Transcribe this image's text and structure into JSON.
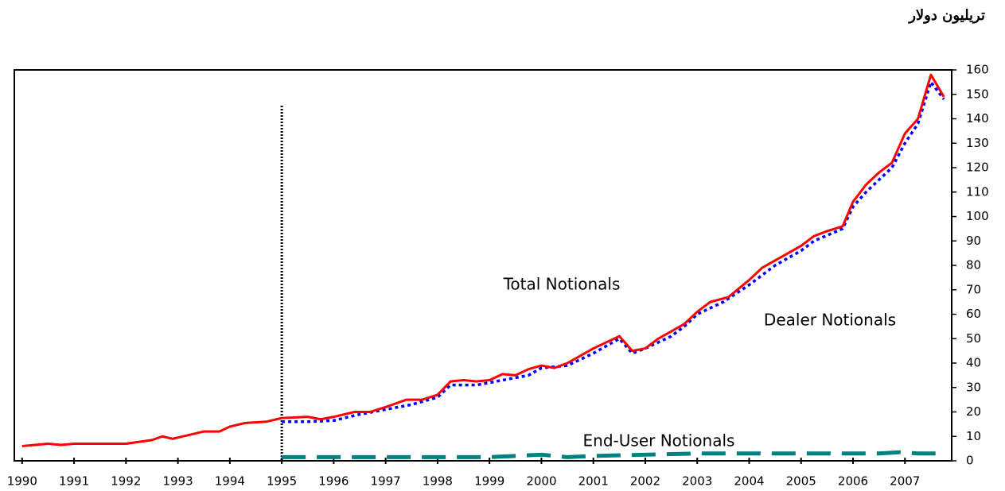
{
  "chart_data": {
    "type": "line",
    "unit_label": "تريليون دولار",
    "annotations": [
      "Total Notionals",
      "Dealer Notionals",
      "End-User Notionals"
    ],
    "xlim": [
      1989.85,
      2007.9
    ],
    "xticks": [
      1990,
      1991,
      1992,
      1993,
      1994,
      1995,
      1996,
      1997,
      1998,
      1999,
      2000,
      2001,
      2002,
      2003,
      2004,
      2005,
      2006,
      2007
    ],
    "ylim": [
      0,
      160
    ],
    "yticks": [
      0,
      10,
      20,
      30,
      40,
      50,
      60,
      70,
      80,
      90,
      100,
      110,
      120,
      130,
      140,
      150,
      160
    ],
    "series": [
      {
        "name": "Total Notionals",
        "color": "#ff0000",
        "style": "solid",
        "x": [
          1990,
          1990.5,
          1990.75,
          1991,
          1992,
          1992.5,
          1992.7,
          1992.9,
          1993.2,
          1993.5,
          1993.8,
          1994,
          1994.3,
          1994.7,
          1995,
          1995.5,
          1995.75,
          1996,
          1996.4,
          1996.7,
          1997,
          1997.4,
          1997.7,
          1998,
          1998.25,
          1998.5,
          1998.75,
          1999,
          1999.25,
          1999.5,
          1999.75,
          2000,
          2000.25,
          2000.5,
          2001,
          2001.5,
          2001.75,
          2002,
          2002.25,
          2002.5,
          2002.75,
          2003,
          2003.25,
          2003.6,
          2004,
          2004.25,
          2004.5,
          2005,
          2005.25,
          2005.5,
          2005.8,
          2006,
          2006.25,
          2006.5,
          2006.75,
          2007,
          2007.25,
          2007.5,
          2007.75
        ],
        "values": [
          6,
          7,
          6.5,
          7,
          7,
          8.5,
          10,
          9,
          10.5,
          12,
          12,
          14,
          15.5,
          16,
          17.5,
          18,
          17,
          18,
          20,
          20,
          22,
          25,
          25,
          27,
          32.5,
          33,
          32.5,
          33,
          35.5,
          35,
          37.5,
          39,
          38,
          40,
          46,
          51,
          45,
          46,
          50,
          53,
          56,
          61,
          65,
          67,
          74,
          79,
          82,
          88,
          92,
          94,
          96,
          106,
          113,
          118,
          122,
          134,
          140,
          158,
          149
        ]
      },
      {
        "name": "Dealer Notionals",
        "color": "#0000ff",
        "style": "dotted",
        "x": [
          1995,
          1995.5,
          1996,
          1996.5,
          1997,
          1997.5,
          1998,
          1998.25,
          1998.75,
          1999,
          1999.5,
          1999.75,
          2000,
          2000.5,
          2001,
          2001.5,
          2001.75,
          2002,
          2002.5,
          2002.75,
          2003,
          2003.5,
          2004,
          2004.5,
          2005,
          2005.25,
          2005.8,
          2006,
          2006.25,
          2006.75,
          2007,
          2007.25,
          2007.5,
          2007.75
        ],
        "values": [
          16,
          16,
          16.5,
          19,
          21,
          23,
          26,
          31,
          31,
          32,
          34,
          35,
          38,
          39,
          44,
          50,
          44,
          46,
          51,
          55,
          60,
          65,
          72,
          80,
          86,
          90,
          95,
          104,
          110,
          120,
          130,
          138,
          155,
          148
        ]
      },
      {
        "name": "End-User Notionals",
        "color": "#008080",
        "style": "dashed",
        "x": [
          1995,
          1996,
          1997,
          1998,
          1999,
          1999.5,
          2000,
          2000.5,
          2001,
          2002,
          2003,
          2003.5,
          2004,
          2005,
          2006,
          2006.5,
          2006.9,
          2007.25,
          2007.8
        ],
        "values": [
          1.5,
          1.5,
          1.5,
          1.5,
          1.5,
          2,
          2.5,
          1.5,
          2,
          2.5,
          3,
          3,
          3,
          3,
          3,
          3,
          3.5,
          3,
          3
        ]
      }
    ]
  }
}
